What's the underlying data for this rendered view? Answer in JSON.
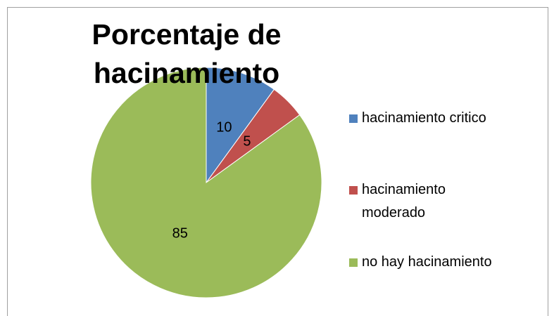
{
  "chart_data": {
    "type": "pie",
    "title": "Porcentaje de hacinamiento",
    "categories": [
      "hacinamiento critico",
      "hacinamiento moderado",
      "no hay hacinamiento"
    ],
    "values": [
      10,
      5,
      85
    ],
    "colors": [
      "#4f81bd",
      "#c0504d",
      "#9bbb59"
    ],
    "legend": "right"
  }
}
